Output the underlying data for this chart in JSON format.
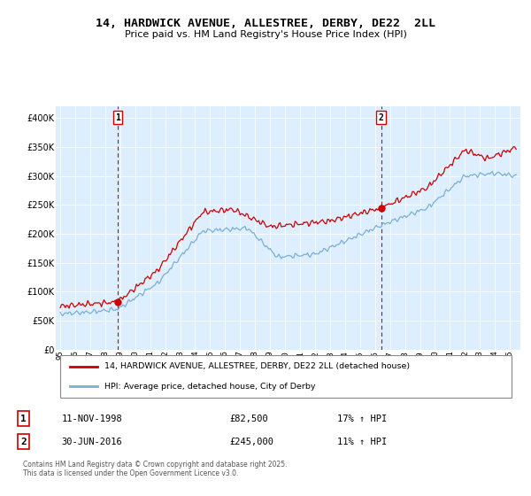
{
  "title": "14, HARDWICK AVENUE, ALLESTREE, DERBY, DE22  2LL",
  "subtitle": "Price paid vs. HM Land Registry's House Price Index (HPI)",
  "legend_label_red": "14, HARDWICK AVENUE, ALLESTREE, DERBY, DE22 2LL (detached house)",
  "legend_label_blue": "HPI: Average price, detached house, City of Derby",
  "annotation1_date": "11-NOV-1998",
  "annotation1_price": "£82,500",
  "annotation1_hpi": "17% ↑ HPI",
  "annotation2_date": "30-JUN-2016",
  "annotation2_price": "£245,000",
  "annotation2_hpi": "11% ↑ HPI",
  "footer": "Contains HM Land Registry data © Crown copyright and database right 2025.\nThis data is licensed under the Open Government Licence v3.0.",
  "ylim": [
    0,
    420000
  ],
  "yticks": [
    0,
    50000,
    100000,
    150000,
    200000,
    250000,
    300000,
    350000,
    400000
  ],
  "red_color": "#cc0000",
  "blue_color": "#7bafd4",
  "chart_bg": "#ddeeff",
  "grid_color": "#ffffff",
  "ann_vline_color": "#cc0000",
  "ann1_t": 1998.833,
  "ann1_price_val": 82500,
  "ann2_t": 2016.417,
  "ann2_price_val": 245000
}
